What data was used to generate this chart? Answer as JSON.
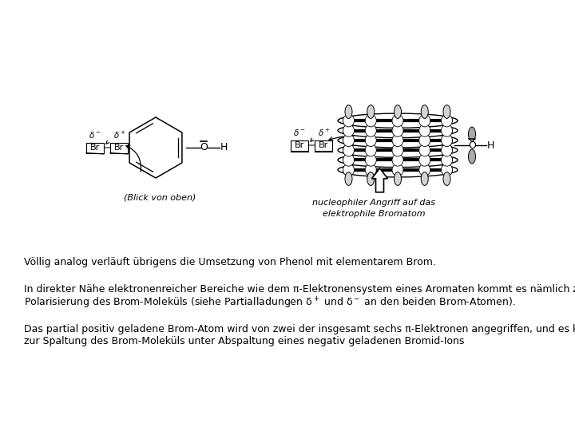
{
  "bg_color": "#ffffff",
  "figsize": [
    7.2,
    5.4
  ],
  "dpi": 100,
  "text1": "Völlig analog verläuft übrigens die Umsetzung von Phenol mit elementarem Brom.",
  "text2_line1": "In direkter Nähe elektronenreicher Bereiche wie dem π-Elektronensystem eines Aromaten kommt es nämlich zu einer",
  "text2_line2": "Polarisierung des Brom-Moleküls (siehe Partialladungen δ$^+$ und δ$^-$ an den beiden Brom-Atomen).",
  "text3_line1": "Das partial positiv geladene Brom-Atom wird von zwei der insgesamt sechs π-Elektronen angegriffen, und es kommt",
  "text3_line2": "zur Spaltung des Brom-Moleküls unter Abspaltung eines negativ geladenen Bromid-Ions",
  "label_blick": "(Blick von oben)",
  "label_nucleophil1": "nucleophiler Angriff auf das",
  "label_nucleophil2": "elektrophile Bromatom",
  "font_size_text": 9.0,
  "font_size_label": 8.0,
  "font_size_small": 7.5
}
